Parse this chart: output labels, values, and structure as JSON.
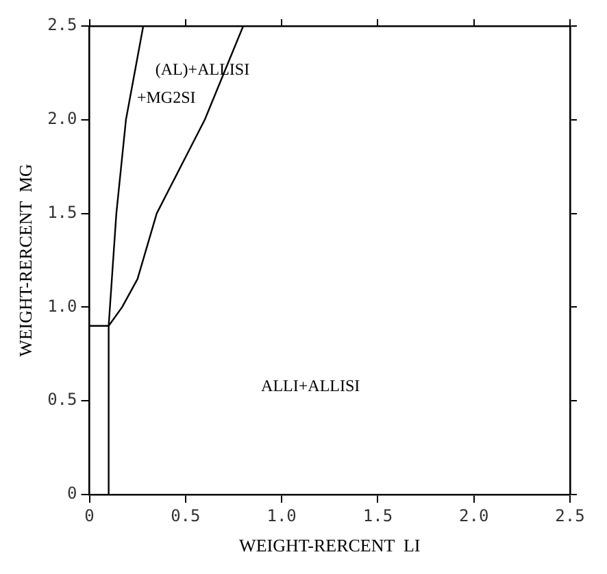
{
  "chart_data": {
    "type": "line",
    "xlabel": "WEIGHT-RERCENT  LI",
    "ylabel": "WEIGHT-RERCENT  MG",
    "xlim": [
      0,
      2.5
    ],
    "ylim": [
      0,
      2.5
    ],
    "xticks": [
      0,
      0.5,
      {
        "value": 1,
        "label": "1.0"
      },
      1.5,
      {
        "value": 2,
        "label": "2.0"
      },
      2.5
    ],
    "yticks": [
      0,
      0.5,
      {
        "value": 1,
        "label": "1.0"
      },
      1.5,
      {
        "value": 2,
        "label": "2.0"
      },
      2.5
    ],
    "grid": false,
    "legend": false,
    "marker": "none",
    "line_style": "solid",
    "series": [
      {
        "color": "#000000",
        "x": [
          0.1,
          0.1,
          0.14,
          0.19,
          0.28
        ],
        "values": [
          0,
          0.9,
          1.5,
          2.0,
          2.5
        ]
      },
      {
        "color": "#000000",
        "x": [
          0,
          0.1,
          0.17,
          0.25,
          0.35,
          0.6,
          0.8
        ],
        "values": [
          0.9,
          0.9,
          1.0,
          1.15,
          1.5,
          2.0,
          2.5
        ]
      }
    ],
    "annotations": [
      "(AL)+ALLISI",
      "+MG2SI",
      "ALLI+ALLISI"
    ]
  }
}
